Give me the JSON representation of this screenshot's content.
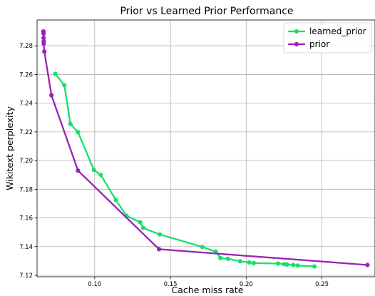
{
  "chart_data": {
    "type": "line",
    "title": "Prior vs Learned Prior Performance",
    "xlabel": "Cache miss rate",
    "ylabel": "Wikitext perplexity",
    "xlim": [
      0.062,
      0.285
    ],
    "ylim": [
      7.119,
      7.298
    ],
    "xticks": [
      0.1,
      0.15,
      0.2,
      0.25
    ],
    "xtick_labels": [
      "0.10",
      "0.15",
      "0.20",
      "0.25"
    ],
    "yticks": [
      7.12,
      7.14,
      7.16,
      7.18,
      7.2,
      7.22,
      7.24,
      7.26,
      7.28
    ],
    "ytick_labels": [
      "7.12",
      "7.14",
      "7.16",
      "7.18",
      "7.20",
      "7.22",
      "7.24",
      "7.26",
      "7.28"
    ],
    "grid": true,
    "legend_position": "top-right",
    "series": [
      {
        "name": "learned_prior",
        "color": "#17e06a",
        "x": [
          0.074,
          0.08,
          0.084,
          0.089,
          0.0995,
          0.104,
          0.114,
          0.121,
          0.13,
          0.132,
          0.143,
          0.171,
          0.18,
          0.183,
          0.188,
          0.196,
          0.202,
          0.205,
          0.221,
          0.225,
          0.227,
          0.231,
          0.234,
          0.245
        ],
        "y": [
          7.2605,
          7.2525,
          7.2255,
          7.2198,
          7.1935,
          7.19,
          7.1725,
          7.1615,
          7.157,
          7.153,
          7.1485,
          7.1398,
          7.1365,
          7.132,
          7.1315,
          7.1298,
          7.129,
          7.1285,
          7.1282,
          7.1278,
          7.1275,
          7.1272,
          7.1268,
          7.1262
        ]
      },
      {
        "name": "prior",
        "color": "#9b22b6",
        "x": [
          0.0662,
          0.0662,
          0.0663,
          0.0663,
          0.0664,
          0.0664,
          0.0668,
          0.0715,
          0.089,
          0.1425,
          0.28
        ],
        "y": [
          7.29,
          7.2895,
          7.2885,
          7.2855,
          7.283,
          7.2815,
          7.276,
          7.2455,
          7.193,
          7.1382,
          7.1272
        ]
      }
    ]
  }
}
